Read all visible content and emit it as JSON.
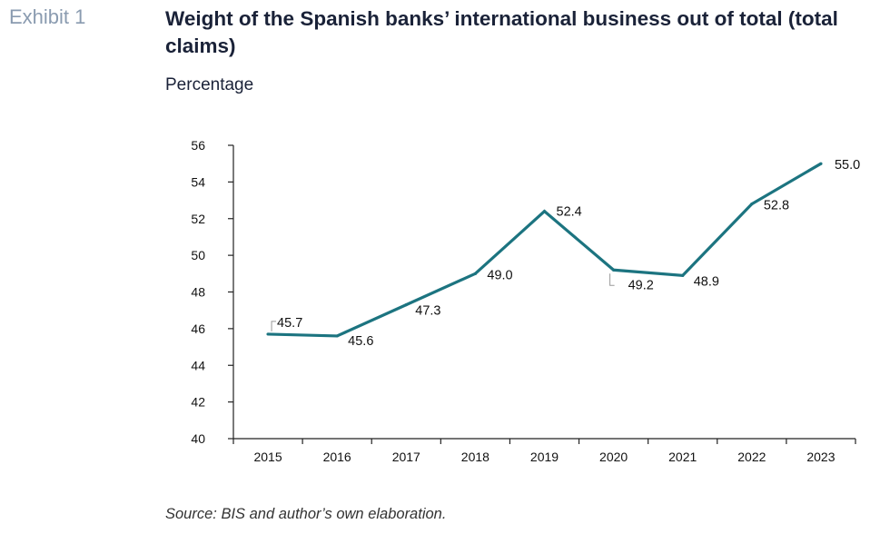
{
  "header": {
    "exhibit": "Exhibit 1",
    "title": "Weight of the Spanish banks’ international business out of total (total claims)",
    "subtitle": "Percentage"
  },
  "footer": {
    "source": "Source: BIS and author’s own elaboration."
  },
  "chart_data": {
    "type": "line",
    "title": "Weight of the Spanish banks’ international business out of total (total claims)",
    "subtitle": "Percentage",
    "xlabel": "",
    "ylabel": "",
    "categories": [
      "2015",
      "2016",
      "2017",
      "2018",
      "2019",
      "2020",
      "2021",
      "2022",
      "2023"
    ],
    "series": [
      {
        "values": [
          45.7,
          45.6,
          47.3,
          49.0,
          52.4,
          49.2,
          48.9,
          52.8,
          55.0
        ],
        "labels": [
          "45.7",
          "45.6",
          "47.3",
          "49.0",
          "52.4",
          "49.2",
          "48.9",
          "52.8",
          "55.0"
        ],
        "color": "#1c7480"
      }
    ],
    "ylim": [
      40,
      56
    ],
    "yticks": [
      "40",
      "42",
      "44",
      "46",
      "48",
      "50",
      "52",
      "54",
      "56"
    ],
    "grid": false,
    "legend": "none"
  }
}
